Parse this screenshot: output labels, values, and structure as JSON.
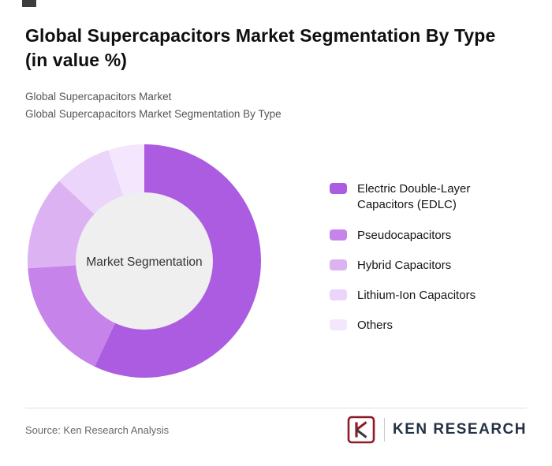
{
  "header": {
    "title_lines": [
      "Global Supercapacitors Market Segmentation By Type",
      "(in value %)"
    ],
    "subtitle1": "Global Supercapacitors Market",
    "subtitle2": "Global Supercapacitors Market Segmentation By Type"
  },
  "chart_data": {
    "type": "pie",
    "donut": true,
    "center_label": "Market Segmentation",
    "categories": [
      "Electric Double-Layer Capacitors (EDLC)",
      "Pseudocapacitors",
      "Hybrid Capacitors",
      "Lithium-Ion Capacitors",
      "Others"
    ],
    "values": [
      57,
      17,
      13,
      8,
      5
    ],
    "colors": [
      "#ab5ce0",
      "#c684ea",
      "#dcb2f3",
      "#ebd5fa",
      "#f4e6fd"
    ],
    "center_fill": "#efefef",
    "inner_radius_ratio": 0.585,
    "start_angle_deg": 0,
    "legend_position": "right"
  },
  "footer": {
    "source": "Source: Ken Research Analysis",
    "brand_initial": "K",
    "brand_text": "KEN RESEARCH",
    "brand_color": "#8e1c26"
  }
}
